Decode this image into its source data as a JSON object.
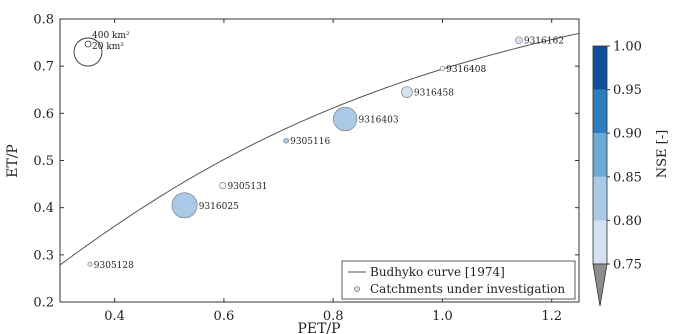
{
  "chart_data": {
    "type": "scatter",
    "xlabel": "PET/P",
    "ylabel": "ET/P",
    "xlim": [
      0.3,
      1.25
    ],
    "ylim": [
      0.2,
      0.8
    ],
    "xticks": [
      0.4,
      0.6,
      0.8,
      1.0,
      1.2
    ],
    "xtick_labels": [
      "0.4",
      "0.6",
      "0.8",
      "1.0",
      "1.2"
    ],
    "yticks": [
      0.2,
      0.3,
      0.4,
      0.5,
      0.6,
      0.7,
      0.8
    ],
    "ytick_labels": [
      "0.2",
      "0.3",
      "0.4",
      "0.5",
      "0.6",
      "0.7",
      "0.8"
    ],
    "grid": false,
    "budyko_curve": {
      "label": "Budhyko curve [1974]",
      "x_range": [
        0.3,
        1.25
      ]
    },
    "size_legend": [
      {
        "label": "400 km²",
        "area_km2": 400
      },
      {
        "label": "20 km²",
        "area_km2": 20
      }
    ],
    "points": [
      {
        "id": "9305128",
        "x": 0.355,
        "y": 0.28,
        "nse": 0.8,
        "area_km2": 5
      },
      {
        "id": "9316025",
        "x": 0.528,
        "y": 0.405,
        "nse": 0.86,
        "area_km2": 160
      },
      {
        "id": "9305131",
        "x": 0.598,
        "y": 0.447,
        "nse": 0.78,
        "area_km2": 10
      },
      {
        "id": "9305116",
        "x": 0.714,
        "y": 0.542,
        "nse": 0.86,
        "area_km2": 6
      },
      {
        "id": "9316403",
        "x": 0.822,
        "y": 0.588,
        "nse": 0.86,
        "area_km2": 140
      },
      {
        "id": "9316458",
        "x": 0.935,
        "y": 0.645,
        "nse": 0.83,
        "area_km2": 30
      },
      {
        "id": "9316408",
        "x": 1.0,
        "y": 0.695,
        "nse": 0.79,
        "area_km2": 3
      },
      {
        "id": "9316162",
        "x": 1.14,
        "y": 0.755,
        "nse": 0.82,
        "area_km2": 12
      }
    ],
    "legend": {
      "placement": "lower-right",
      "entries": [
        "Budhyko curve [1974]",
        "Catchments under investigation"
      ]
    },
    "colorbar": {
      "label": "NSE [-]",
      "ticks": [
        0.75,
        0.8,
        0.85,
        0.9,
        0.95,
        1.0
      ],
      "tick_labels": [
        "0.75",
        "0.80",
        "0.85",
        "0.90",
        "0.95",
        "1.00"
      ],
      "colors": [
        "#f3f6fc",
        "#d3e1f1",
        "#a9c9e6",
        "#6aaad6",
        "#2e7dbe",
        "#0d4f97"
      ],
      "extend": "min",
      "under_color": "#8c8c8c"
    }
  }
}
